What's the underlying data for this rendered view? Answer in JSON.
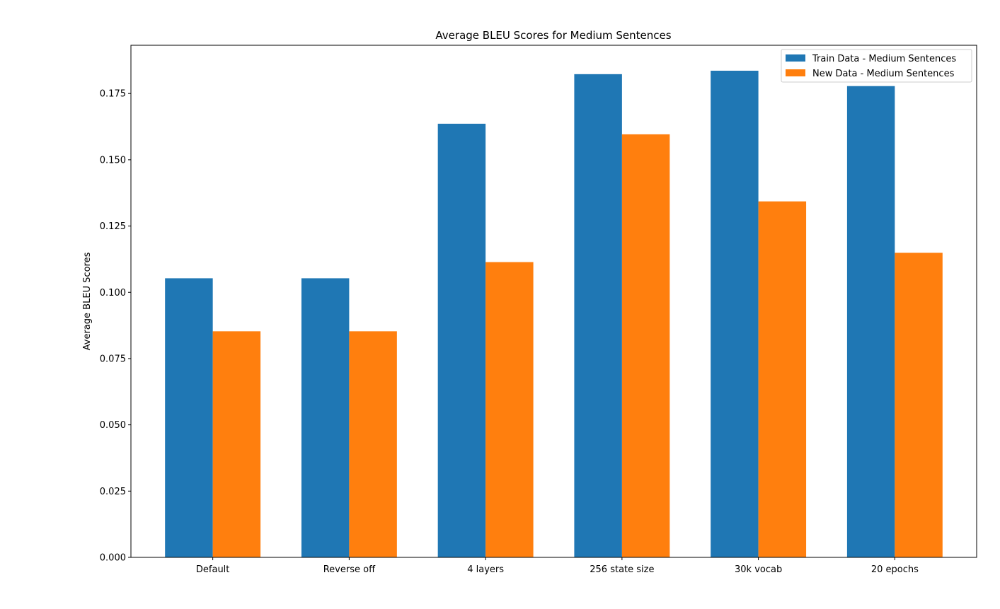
{
  "chart_data": {
    "type": "bar",
    "title": "Average BLEU Scores for Medium Sentences",
    "xlabel": "",
    "ylabel": "Average BLEU Scores",
    "categories": [
      "Default",
      "Reverse off",
      "4 layers",
      "256 state size",
      "30k vocab",
      "20 epochs"
    ],
    "series": [
      {
        "name": "Train Data - Medium Sentences",
        "color": "#1f77b4",
        "values": [
          0.1053,
          0.1053,
          0.1636,
          0.1823,
          0.1836,
          0.1778
        ]
      },
      {
        "name": "New Data - Medium Sentences",
        "color": "#ff7f0e",
        "values": [
          0.0853,
          0.0853,
          0.1114,
          0.1596,
          0.1343,
          0.1149
        ]
      }
    ],
    "ylim": [
      0,
      0.1932
    ],
    "yticks": [
      0.0,
      0.025,
      0.05,
      0.075,
      0.1,
      0.125,
      0.15,
      0.175
    ],
    "ytick_labels": [
      "0.000",
      "0.025",
      "0.050",
      "0.075",
      "0.100",
      "0.125",
      "0.150",
      "0.175"
    ],
    "grid": false,
    "legend_position": "top-right"
  }
}
